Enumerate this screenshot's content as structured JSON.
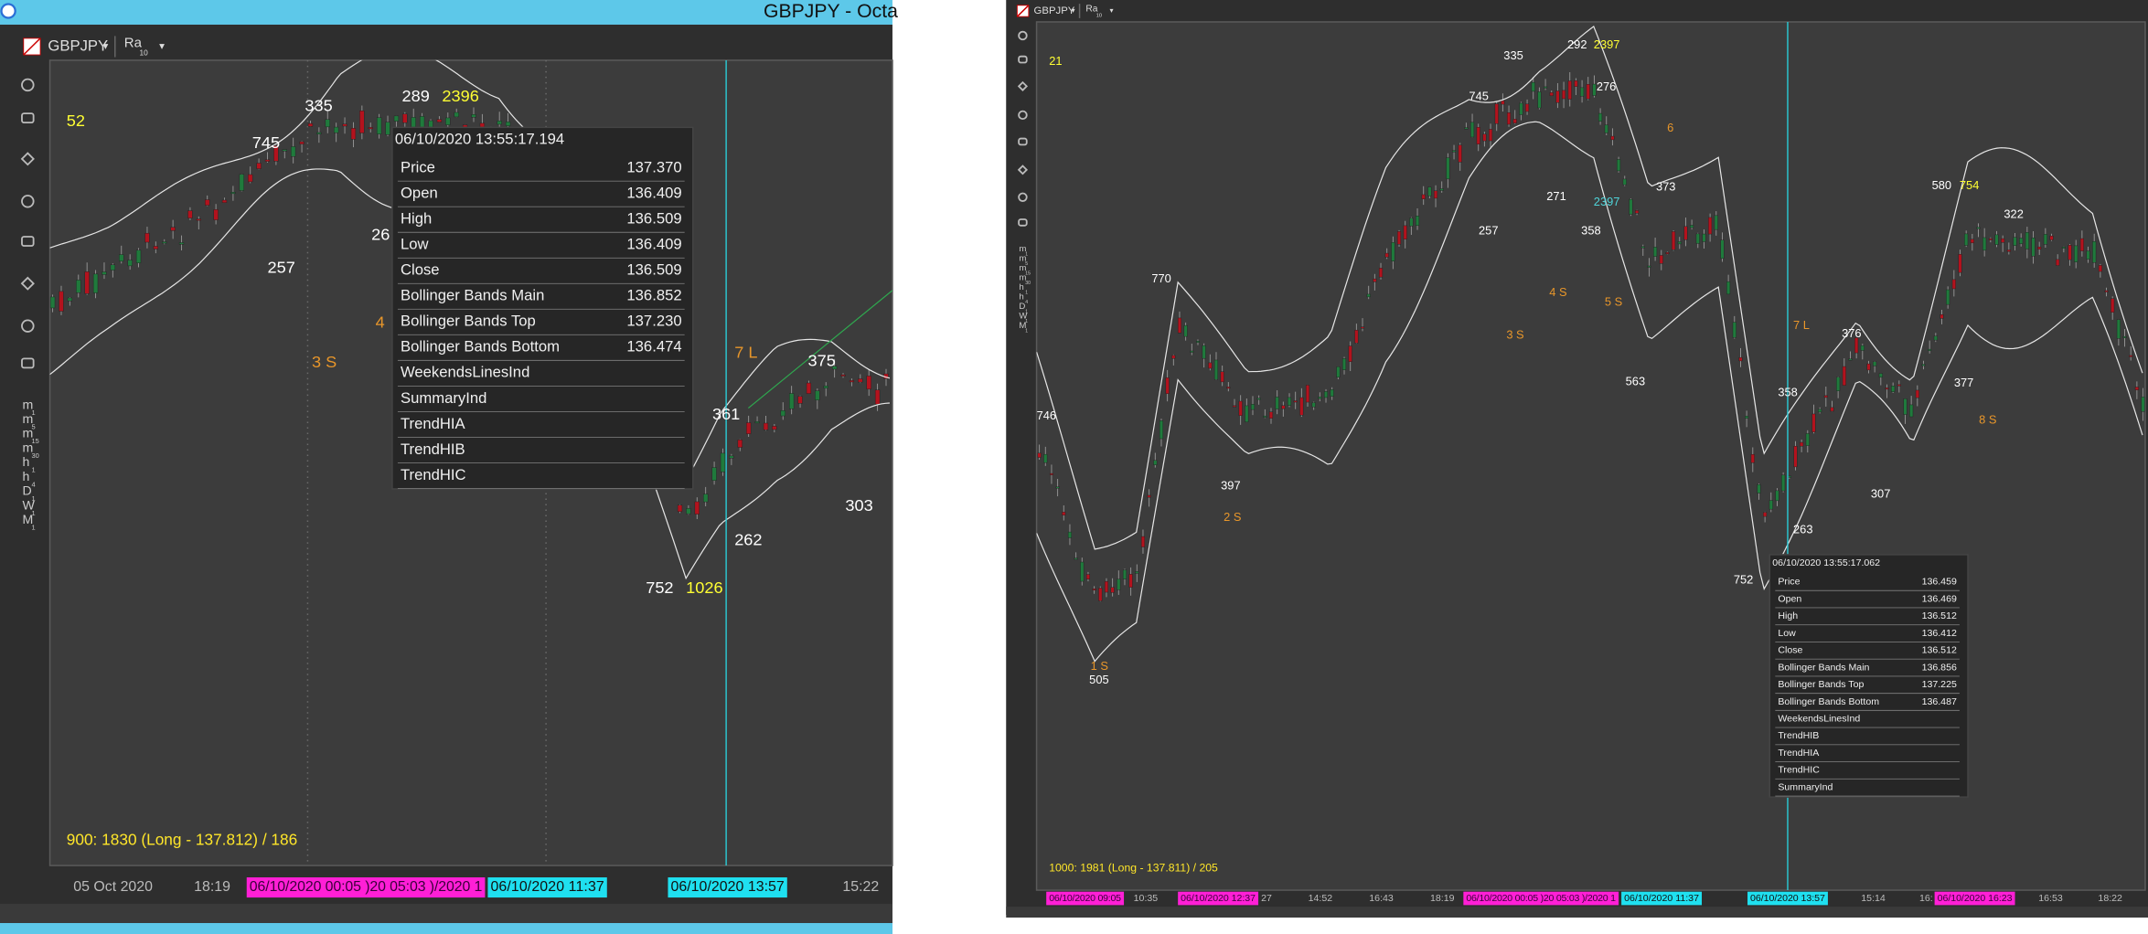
{
  "left": {
    "window_title": "GBPJPY - Octa",
    "symbol": "GBPJPY",
    "mode": "Ra",
    "mode_sub": "10",
    "timeframes": [
      {
        "main": "m",
        "sub": "1"
      },
      {
        "main": "m",
        "sub": "5"
      },
      {
        "main": "m",
        "sub": "15"
      },
      {
        "main": "m",
        "sub": "30"
      },
      {
        "main": "h",
        "sub": "1"
      },
      {
        "main": "h",
        "sub": "4"
      },
      {
        "main": "D",
        "sub": "1"
      },
      {
        "main": "W",
        "sub": "1"
      },
      {
        "main": "M",
        "sub": "1"
      }
    ],
    "labels": [
      "52",
      "745",
      "335",
      "289",
      "2396",
      "257",
      "26",
      "3 S",
      "4",
      "7 L",
      "375",
      "361",
      "262",
      "303",
      "752",
      "1026"
    ],
    "tooltip": {
      "time": "06/10/2020 13:55:17.194",
      "rows": [
        {
          "name": "Price",
          "value": "137.370"
        },
        {
          "name": "Open",
          "value": "136.409"
        },
        {
          "name": "High",
          "value": "136.509"
        },
        {
          "name": "Low",
          "value": "136.409"
        },
        {
          "name": "Close",
          "value": "136.509"
        },
        {
          "name": "Bollinger Bands Main",
          "value": "136.852"
        },
        {
          "name": "Bollinger Bands Top",
          "value": "137.230"
        },
        {
          "name": "Bollinger Bands Bottom",
          "value": "136.474"
        },
        {
          "name": "WeekendsLinesInd"
        },
        {
          "name": "SummaryInd"
        },
        {
          "name": "TrendHIA"
        },
        {
          "name": "TrendHIB"
        },
        {
          "name": "TrendHIC"
        }
      ]
    },
    "status": "900: 1830 (Long - 137.812) / 186",
    "time_axis": [
      "05 Oct 2020",
      "18:19",
      "06/10/2020 00:05 )20 05:03 )/2020 1",
      "06/10/2020 11:37",
      "06/10/2020 13:57",
      "15:22"
    ]
  },
  "right": {
    "symbol": "GBPJPY",
    "mode": "Ra",
    "mode_sub": "10",
    "timeframes": [
      {
        "main": "m",
        "sub": "1"
      },
      {
        "main": "m",
        "sub": "5"
      },
      {
        "main": "m",
        "sub": "15"
      },
      {
        "main": "m",
        "sub": "30"
      },
      {
        "main": "h",
        "sub": "1"
      },
      {
        "main": "h",
        "sub": "4"
      },
      {
        "main": "D",
        "sub": "1"
      },
      {
        "main": "W",
        "sub": "1"
      },
      {
        "main": "M",
        "sub": "1"
      }
    ],
    "labels": [
      "21",
      "335",
      "292",
      "2397",
      "745",
      "276",
      "271",
      "2397",
      "257",
      "358",
      "6",
      "373",
      "4 S",
      "5 S",
      "3 S",
      "563",
      "770",
      "746",
      "397",
      "2 S",
      "1 S",
      "505",
      "7 L",
      "376",
      "358",
      "580",
      "754",
      "322",
      "377",
      "8 S",
      "307",
      "263",
      "752"
    ],
    "tooltip": {
      "time": "06/10/2020 13:55:17.062",
      "rows": [
        {
          "name": "Price",
          "value": "136.459"
        },
        {
          "name": "Open",
          "value": "136.469"
        },
        {
          "name": "High",
          "value": "136.512"
        },
        {
          "name": "Low",
          "value": "136.412"
        },
        {
          "name": "Close",
          "value": "136.512"
        },
        {
          "name": "Bollinger Bands Main",
          "value": "136.856"
        },
        {
          "name": "Bollinger Bands Top",
          "value": "137.225"
        },
        {
          "name": "Bollinger Bands Bottom",
          "value": "136.487"
        },
        {
          "name": "WeekendsLinesInd"
        },
        {
          "name": "TrendHIB"
        },
        {
          "name": "TrendHIA"
        },
        {
          "name": "TrendHIC"
        },
        {
          "name": "SummaryInd"
        }
      ]
    },
    "status": "1000: 1981 (Long - 137.811) / 205",
    "time_axis": [
      "06/10/2020 09:05",
      "10:35",
      "06/10/2020 12:37",
      "27",
      "14:52",
      "16:43",
      "18:19",
      "06/10/2020 00:05 )20 05:03 )/2020 1",
      "06/10/2020 11:37",
      "06/10/2020 13:57",
      "15:14",
      "16:",
      "06/10/2020 16:23",
      "16:53",
      "18:22"
    ]
  }
}
